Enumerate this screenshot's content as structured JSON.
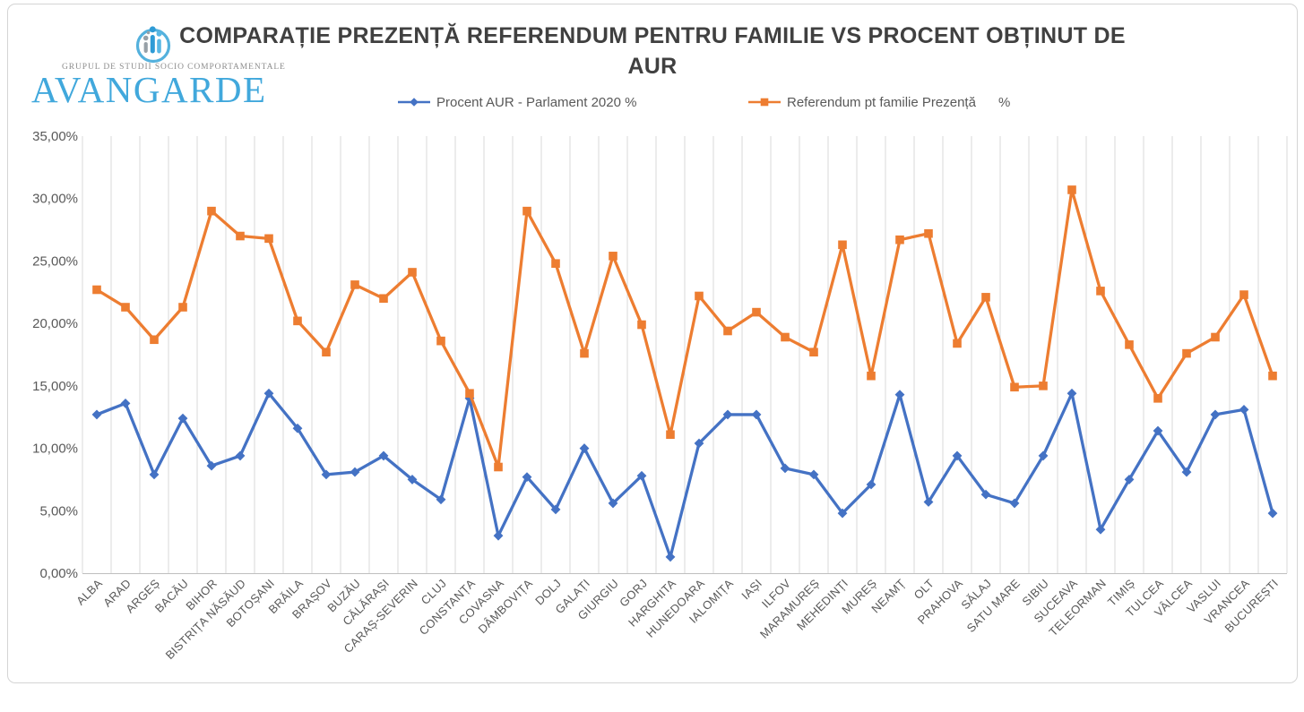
{
  "logo": {
    "subtitle": "GRUPUL DE STUDII SOCIO COMPORTAMENTALE",
    "brand": "AVANGARDE",
    "brand_color": "#41A8DC"
  },
  "title": {
    "line1": "COMPARAȚIE PREZENȚĂ REFERENDUM PENTRU FAMILIE VS PROCENT OBȚINUT DE",
    "line2": "AUR",
    "color": "#404040"
  },
  "legend": [
    {
      "label": "Procent AUR - Parlament 2020 %",
      "marker": "diamond",
      "color": "#4472C4"
    },
    {
      "label": "Referendum pt familie Prezență      %",
      "marker": "square",
      "color": "#ED7D31"
    }
  ],
  "y_axis": {
    "tick_labels": [
      "0,00%",
      "5,00%",
      "10,00%",
      "15,00%",
      "20,00%",
      "25,00%",
      "30,00%",
      "35,00%"
    ],
    "color": "#595959"
  },
  "chart_data": {
    "type": "line",
    "title": "COMPARAȚIE PREZENȚĂ REFERENDUM PENTRU FAMILIE VS PROCENT OBȚINUT DE AUR",
    "xlabel": "",
    "ylabel": "",
    "ylim": [
      0,
      35
    ],
    "ytick_step": 5,
    "grid": "vertical-only",
    "legend_position": "top",
    "categories": [
      "ALBA",
      "ARAD",
      "ARGEȘ",
      "BACĂU",
      "BIHOR",
      "BISTRIȚA NĂSĂUD",
      "BOTOȘANI",
      "BRĂILA",
      "BRAȘOV",
      "BUZĂU",
      "CĂLĂRAȘI",
      "CARAȘ-SEVERIN",
      "CLUJ",
      "CONSTANȚA",
      "COVASNA",
      "DÂMBOVIȚA",
      "DOLJ",
      "GALAȚI",
      "GIURGIU",
      "GORJ",
      "HARGHITA",
      "HUNEDOARA",
      "IALOMIȚA",
      "IAȘI",
      "ILFOV",
      "MARAMUREȘ",
      "MEHEDINȚI",
      "MUREȘ",
      "NEAMȚ",
      "OLT",
      "PRAHOVA",
      "SĂLAJ",
      "SATU MARE",
      "SIBIU",
      "SUCEAVA",
      "TELEORMAN",
      "TIMIȘ",
      "TULCEA",
      "VÂLCEA",
      "VASLUI",
      "VRANCEA",
      "BUCUREȘTI"
    ],
    "series": [
      {
        "name": "Procent AUR - Parlament 2020 %",
        "color": "#4472C4",
        "marker": "diamond",
        "values": [
          12.7,
          13.6,
          7.9,
          12.4,
          8.6,
          9.4,
          14.4,
          11.6,
          7.9,
          8.1,
          9.4,
          7.5,
          5.9,
          14.0,
          3.0,
          7.7,
          5.1,
          10.0,
          5.6,
          7.8,
          1.3,
          10.4,
          12.7,
          12.7,
          8.4,
          7.9,
          4.8,
          7.1,
          14.3,
          5.7,
          9.4,
          6.3,
          5.6,
          9.4,
          14.4,
          3.5,
          7.5,
          11.4,
          8.1,
          12.7,
          13.1,
          4.8
        ]
      },
      {
        "name": "Referendum pt familie Prezență %",
        "color": "#ED7D31",
        "marker": "square",
        "values": [
          22.7,
          21.3,
          18.7,
          21.3,
          29.0,
          27.0,
          26.8,
          20.2,
          17.7,
          23.1,
          22.0,
          24.1,
          18.6,
          14.4,
          8.5,
          29.0,
          24.8,
          17.6,
          25.4,
          19.9,
          11.1,
          22.2,
          19.4,
          20.9,
          18.9,
          17.7,
          26.3,
          15.8,
          26.7,
          27.2,
          18.4,
          22.1,
          14.9,
          15.0,
          30.7,
          22.6,
          18.3,
          14.0,
          17.6,
          18.9,
          22.3,
          15.8
        ]
      }
    ]
  }
}
